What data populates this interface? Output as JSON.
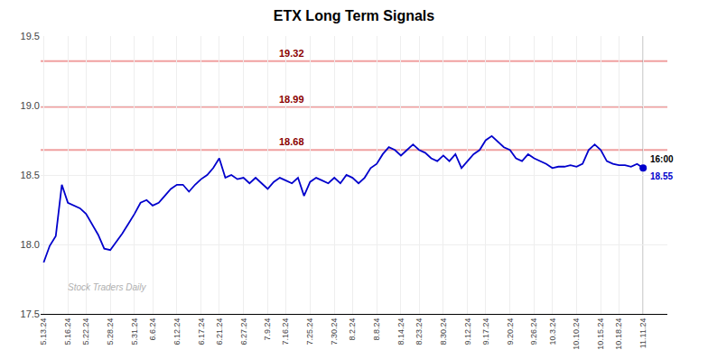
{
  "chart_data": {
    "type": "line",
    "title": "ETX Long Term Signals",
    "watermark": "Stock Traders Daily",
    "categories": [
      "5.13.24",
      null,
      null,
      null,
      "5.16.24",
      null,
      null,
      "5.22.24",
      null,
      null,
      null,
      "5.28.24",
      null,
      null,
      null,
      "5.31.24",
      null,
      null,
      "6.6.24",
      null,
      null,
      null,
      "6.12.24",
      null,
      null,
      null,
      "6.17.24",
      null,
      null,
      "6.21.24",
      null,
      null,
      null,
      "6.27.24",
      null,
      null,
      null,
      "7.9.24",
      null,
      null,
      "7.16.24",
      null,
      null,
      null,
      "7.25.24",
      null,
      null,
      null,
      "7.30.24",
      null,
      null,
      "8.2.24",
      null,
      null,
      null,
      "8.8.24",
      null,
      null,
      null,
      "8.14.24",
      null,
      null,
      "8.23.24",
      null,
      null,
      null,
      "8.30.24",
      null,
      null,
      null,
      "9.12.24",
      null,
      null,
      "9.17.24",
      null,
      null,
      null,
      "9.20.24",
      null,
      null,
      null,
      "9.26.24",
      null,
      null,
      "10.3.24",
      null,
      null,
      null,
      "10.10.24",
      null,
      null,
      null,
      "10.15.24",
      null,
      null,
      "10.18.24",
      null,
      null,
      null,
      "11.11.24"
    ],
    "values": [
      17.87,
      17.99,
      18.06,
      18.43,
      18.3,
      18.28,
      18.26,
      18.22,
      18.14,
      18.07,
      17.97,
      17.96,
      18.02,
      18.08,
      18.15,
      18.22,
      18.3,
      18.32,
      18.28,
      18.3,
      18.35,
      18.4,
      18.43,
      18.43,
      18.38,
      18.43,
      18.47,
      18.5,
      18.55,
      18.62,
      18.48,
      18.5,
      18.47,
      18.48,
      18.44,
      18.48,
      18.44,
      18.4,
      18.45,
      18.48,
      18.46,
      18.44,
      18.48,
      18.35,
      18.45,
      18.48,
      18.46,
      18.44,
      18.48,
      18.44,
      18.5,
      18.48,
      18.44,
      18.48,
      18.55,
      18.58,
      18.65,
      18.7,
      18.68,
      18.64,
      18.68,
      18.72,
      18.68,
      18.66,
      18.62,
      18.6,
      18.64,
      18.6,
      18.65,
      18.55,
      18.6,
      18.65,
      18.68,
      18.75,
      18.78,
      18.74,
      18.7,
      18.68,
      18.62,
      18.6,
      18.65,
      18.62,
      18.6,
      18.58,
      18.55,
      18.56,
      18.56,
      18.57,
      18.56,
      18.58,
      18.68,
      18.72,
      18.68,
      18.6,
      18.58,
      18.57,
      18.57,
      18.56,
      18.58,
      18.55
    ],
    "color": "#0000cc",
    "hlines": [
      {
        "y": 19.32,
        "label": "19.32",
        "color": "#f0a0a0",
        "label_color": "#8b0000"
      },
      {
        "y": 18.99,
        "label": "18.99",
        "color": "#f0a0a0",
        "label_color": "#8b0000"
      },
      {
        "y": 18.68,
        "label": "18.68",
        "color": "#f0a0a0",
        "label_color": "#8b0000"
      }
    ],
    "annotations": [
      {
        "text": "16:00",
        "color": "#000000"
      },
      {
        "text": "18.55",
        "color": "#0000cc"
      }
    ],
    "ylim": [
      17.5,
      19.5
    ],
    "yticks": [
      17.5,
      {
        "value": 18,
        "label": "18.0"
      },
      18.5,
      {
        "value": 19,
        "label": "19.0"
      },
      19.5
    ],
    "grid": true
  }
}
